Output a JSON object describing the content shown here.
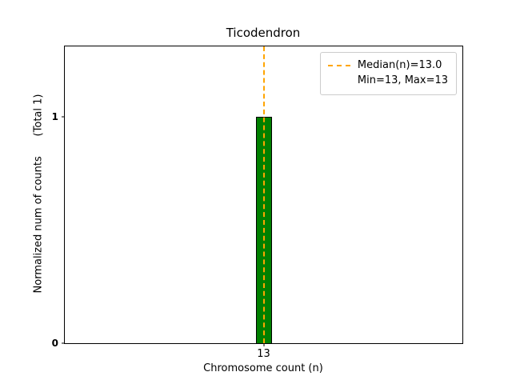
{
  "chart_data": {
    "type": "bar",
    "title": "Ticodendron",
    "xlabel": "Chromosome count (n)",
    "ylabel": "Normalized num of counts      (Total 1)",
    "categories": [
      "13"
    ],
    "values": [
      1
    ],
    "ylim": [
      0,
      1.31
    ],
    "yticks": [
      {
        "value": 0,
        "label": "0"
      },
      {
        "value": 1,
        "label": "1"
      }
    ],
    "bar_color": "#008000",
    "bar_edge_color": "#000000",
    "median_line": {
      "x": 13,
      "color": "#ffa500",
      "style": "dashed"
    },
    "legend": {
      "position": "top-right",
      "entries": [
        {
          "sample": "dashed-line",
          "label": "Median(n)=13.0"
        },
        {
          "sample": "none",
          "label": "Min=13, Max=13"
        }
      ]
    },
    "grid": false
  }
}
